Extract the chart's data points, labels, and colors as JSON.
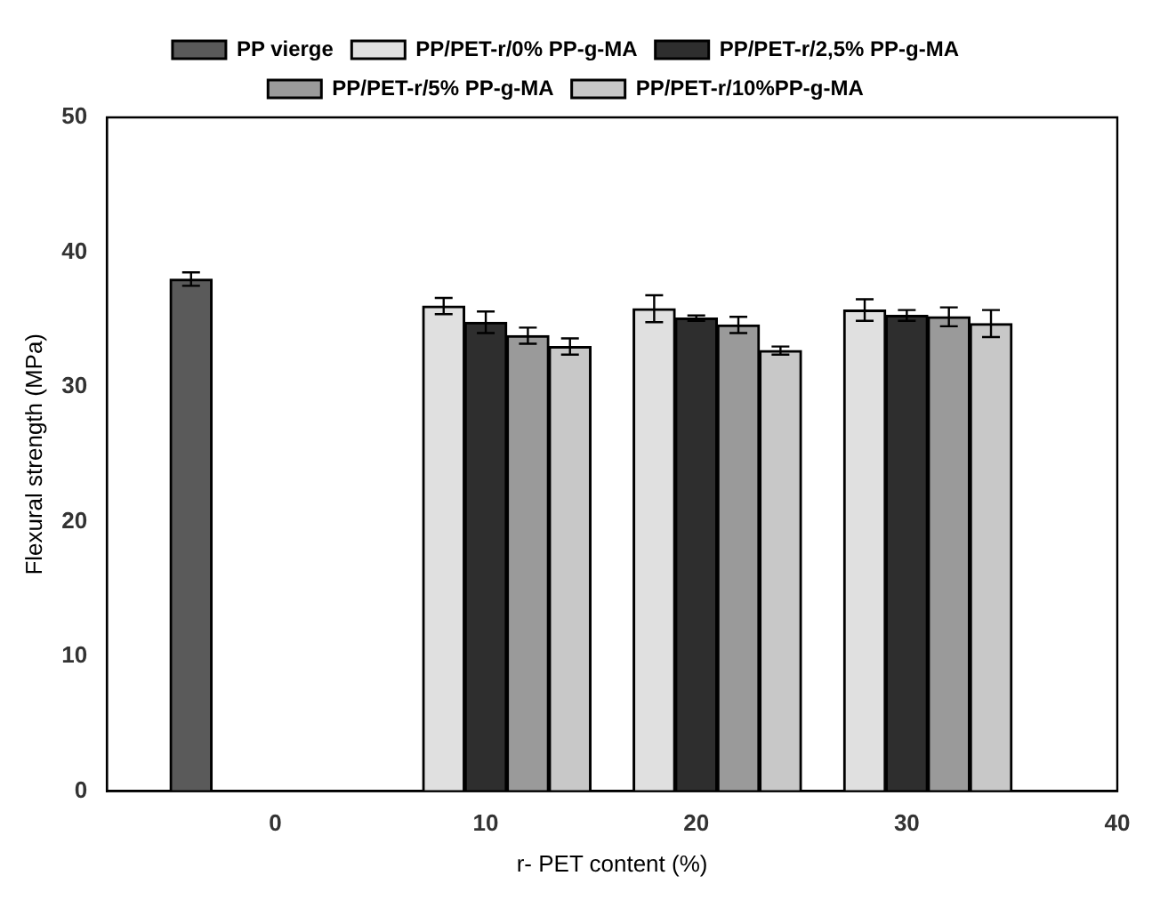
{
  "chart_data": {
    "type": "bar",
    "xlabel": "r- PET content (%)",
    "ylabel": "Flexural strength (MPa)",
    "xlim": [
      -8,
      40
    ],
    "xticks": [
      0,
      10,
      20,
      30,
      40
    ],
    "ylim": [
      0,
      50
    ],
    "yticks": [
      0,
      10,
      20,
      30,
      40,
      50
    ],
    "grid": false,
    "legend": "top",
    "series": [
      {
        "name": "PP vierge",
        "color": "#5a5a5a",
        "x": [
          -4
        ],
        "values": [
          38.0
        ],
        "errors": [
          0.5
        ]
      },
      {
        "name": "PP/PET-r/0% PP-g-MA",
        "color": "#e0e0e0",
        "x": [
          8,
          18,
          28
        ],
        "values": [
          36.0,
          35.8,
          35.7
        ],
        "errors": [
          0.6,
          1.0,
          0.8
        ]
      },
      {
        "name": "PP/PET-r/2,5% PP-g-MA",
        "color": "#2e2e2e",
        "x": [
          10,
          20,
          30
        ],
        "values": [
          34.8,
          35.1,
          35.3
        ],
        "errors": [
          0.8,
          0.2,
          0.4
        ]
      },
      {
        "name": "PP/PET-r/5% PP-g-MA",
        "color": "#9a9a9a",
        "x": [
          12,
          22,
          32
        ],
        "values": [
          33.8,
          34.6,
          35.2
        ],
        "errors": [
          0.6,
          0.6,
          0.7
        ]
      },
      {
        "name": "PP/PET-r/10%PP-g-MA",
        "color": "#c8c8c8",
        "x": [
          14,
          24,
          34
        ],
        "values": [
          33.0,
          32.7,
          34.7
        ],
        "errors": [
          0.6,
          0.3,
          1.0
        ]
      }
    ]
  }
}
